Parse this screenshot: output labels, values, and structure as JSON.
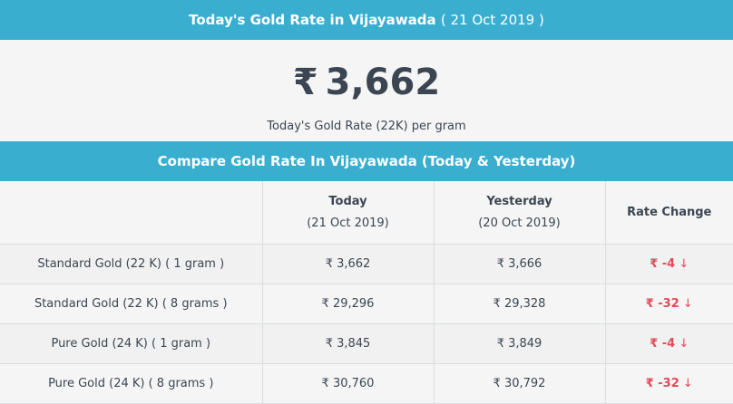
{
  "header": {
    "title": "Today's Gold Rate in Vijayawada",
    "date": "( 21 Oct 2019 )"
  },
  "hero": {
    "currency_symbol": "₹",
    "price": "3,662",
    "caption": "Today's Gold Rate (22K) per gram"
  },
  "compare": {
    "title": "Compare Gold Rate In Vijayawada (Today & Yesterday)",
    "columns": {
      "today": "Today",
      "today_date": "(21 Oct 2019)",
      "yesterday": "Yesterday",
      "yesterday_date": "(20 Oct 2019)",
      "change": "Rate Change"
    },
    "rows": [
      {
        "label": "Standard Gold (22 K) ( 1 gram )",
        "today": "₹ 3,662",
        "yesterday": "₹ 3,666",
        "change": "₹ -4",
        "arrow": "↓"
      },
      {
        "label": "Standard Gold (22 K) ( 8 grams )",
        "today": "₹ 29,296",
        "yesterday": "₹ 29,328",
        "change": "₹ -32",
        "arrow": "↓"
      },
      {
        "label": "Pure Gold (24 K) ( 1 gram )",
        "today": "₹ 3,845",
        "yesterday": "₹ 3,849",
        "change": "₹ -4",
        "arrow": "↓"
      },
      {
        "label": "Pure Gold (24 K) ( 8 grams )",
        "today": "₹ 30,760",
        "yesterday": "₹ 30,792",
        "change": "₹ -32",
        "arrow": "↓"
      }
    ]
  },
  "colors": {
    "header_bg": "#3aaecf",
    "negative": "#e04a59",
    "text": "#3b4652"
  }
}
